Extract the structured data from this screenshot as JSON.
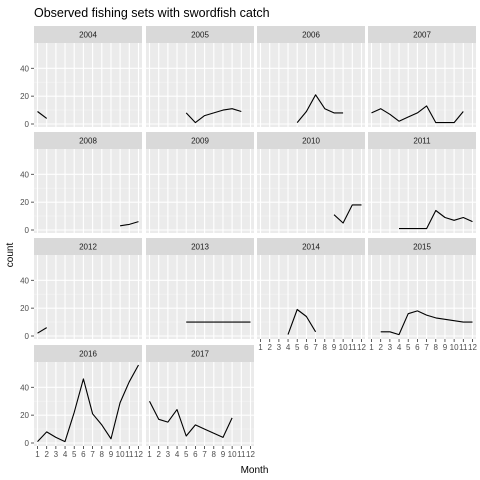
{
  "chart_data": {
    "type": "line",
    "title": "Observed fishing sets with swordfish catch",
    "xlabel": "Month",
    "ylabel": "count",
    "x_ticks": [
      "1",
      "2",
      "3",
      "4",
      "5",
      "6",
      "7",
      "8",
      "9",
      "10",
      "11",
      "12"
    ],
    "y_ticks": [
      0,
      20,
      40
    ],
    "xlim": [
      1,
      12
    ],
    "ylim": [
      0,
      56
    ],
    "grid": true,
    "facets": [
      {
        "name": "2004",
        "x": [
          1,
          2
        ],
        "y": [
          9,
          4
        ]
      },
      {
        "name": "2005",
        "x": [
          5,
          6,
          7,
          8,
          9,
          10,
          11
        ],
        "y": [
          8,
          1,
          6,
          8,
          10,
          11,
          9
        ]
      },
      {
        "name": "2006",
        "x": [
          5,
          6,
          7,
          8,
          9,
          10
        ],
        "y": [
          1,
          9,
          21,
          11,
          8,
          8
        ]
      },
      {
        "name": "2007",
        "x": [
          1,
          2,
          3,
          4,
          5,
          6,
          7,
          8,
          9,
          10,
          11
        ],
        "y": [
          8,
          11,
          7,
          2,
          5,
          8,
          13,
          1,
          1,
          1,
          9
        ]
      },
      {
        "name": "2008",
        "x": [
          10,
          11,
          12
        ],
        "y": [
          3,
          4,
          6
        ]
      },
      {
        "name": "2009",
        "x": [],
        "y": []
      },
      {
        "name": "2010",
        "x": [
          9,
          10,
          11,
          12
        ],
        "y": [
          11,
          5,
          18,
          18
        ]
      },
      {
        "name": "2011",
        "x": [
          4,
          5,
          6,
          7,
          8,
          9,
          10,
          11,
          12
        ],
        "y": [
          1,
          1,
          1,
          1,
          14,
          9,
          7,
          9,
          6
        ]
      },
      {
        "name": "2012",
        "x": [
          1,
          2
        ],
        "y": [
          2,
          6
        ]
      },
      {
        "name": "2013",
        "x": [
          5,
          6,
          7,
          8,
          9,
          10,
          11,
          12
        ],
        "y": [
          10,
          10,
          10,
          10,
          10,
          10,
          10,
          10
        ]
      },
      {
        "name": "2014",
        "x": [
          4,
          5,
          6,
          7
        ],
        "y": [
          1,
          19,
          14,
          3
        ]
      },
      {
        "name": "2015",
        "x": [
          2,
          3,
          4,
          5,
          6,
          7,
          8,
          9,
          10,
          11,
          12
        ],
        "y": [
          3,
          3,
          1,
          16,
          18,
          15,
          13,
          12,
          11,
          10,
          10
        ]
      },
      {
        "name": "2016",
        "x": [
          1,
          2,
          3,
          4,
          5,
          6,
          7,
          8,
          9,
          10,
          11,
          12
        ],
        "y": [
          1,
          8,
          4,
          1,
          22,
          46,
          21,
          13,
          3,
          29,
          44,
          56
        ]
      },
      {
        "name": "2017",
        "x": [
          1,
          2,
          3,
          4,
          5,
          6,
          7,
          8,
          9,
          10
        ],
        "y": [
          30,
          17,
          15,
          24,
          5,
          13,
          10,
          7,
          4,
          18
        ]
      }
    ]
  }
}
